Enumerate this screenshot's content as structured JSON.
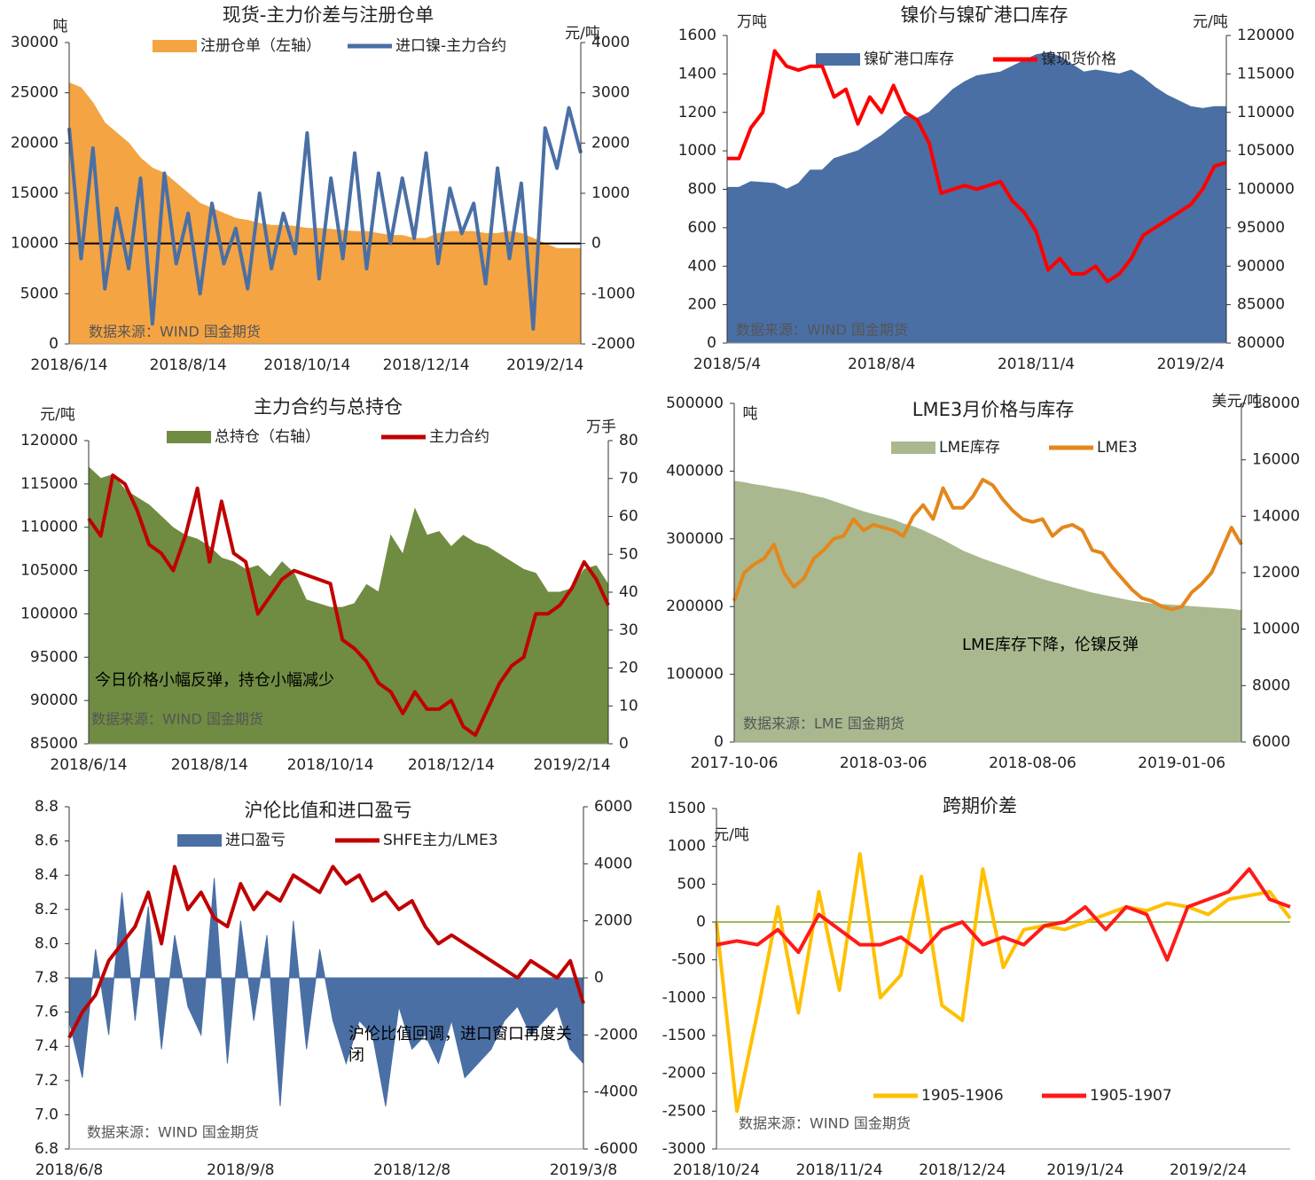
{
  "chart_data": [
    {
      "type": "line",
      "title": "现货-主力价差与注册仓单",
      "y_label": "吨",
      "y2_label": "元/吨",
      "source": "数据来源：WIND 国金期货",
      "categories": [
        "2018/6/14",
        null,
        null,
        null,
        null,
        null,
        null,
        null,
        null,
        null,
        "2018/8/14",
        null,
        null,
        null,
        null,
        null,
        null,
        null,
        null,
        null,
        "2018/10/14",
        null,
        null,
        null,
        null,
        null,
        null,
        null,
        null,
        null,
        "2018/12/14",
        null,
        null,
        null,
        null,
        null,
        null,
        null,
        null,
        null,
        "2019/2/14",
        null,
        null,
        null
      ],
      "ylim": [
        0,
        30000
      ],
      "yticks": [
        0,
        5000,
        10000,
        15000,
        20000,
        25000,
        30000
      ],
      "y2lim": [
        -2000,
        4000
      ],
      "y2ticks": [
        -2000,
        -1000,
        0,
        1000,
        2000,
        3000,
        4000
      ],
      "series": [
        {
          "name": "注册仓单（左轴）",
          "type": "area",
          "color": "#f4a442",
          "values": [
            26000,
            25500,
            24000,
            22000,
            21000,
            20000,
            18500,
            17500,
            17000,
            16000,
            15000,
            14000,
            13500,
            13000,
            12500,
            12300,
            12000,
            11800,
            11800,
            11700,
            11500,
            11500,
            11400,
            11300,
            11200,
            11200,
            11000,
            10800,
            10800,
            10500,
            10500,
            11000,
            11200,
            11200,
            11200,
            11000,
            11000,
            11200,
            11000,
            10500,
            10000,
            9500,
            9500,
            9500
          ]
        },
        {
          "name": "进口镍-主力合约",
          "type": "line",
          "axis": "y2",
          "color": "#4a6fa5",
          "values": [
            2300,
            -300,
            1900,
            -900,
            700,
            -500,
            1300,
            -1600,
            1400,
            -400,
            600,
            -1000,
            800,
            -400,
            300,
            -900,
            1000,
            -500,
            600,
            -200,
            2200,
            -700,
            1300,
            -300,
            1800,
            -500,
            1400,
            0,
            1300,
            100,
            1800,
            -400,
            1100,
            200,
            800,
            -800,
            1500,
            -300,
            1200,
            -1700,
            2300,
            1500,
            2700,
            1800
          ]
        }
      ]
    },
    {
      "type": "line",
      "title": "镍价与镍矿港口库存",
      "y_label": "万吨",
      "y2_label": "元/吨",
      "source": "数据来源：WIND 国金期货",
      "categories": [
        "2018/5/4",
        null,
        null,
        null,
        null,
        null,
        null,
        null,
        null,
        null,
        null,
        null,
        null,
        "2018/8/4",
        null,
        null,
        null,
        null,
        null,
        null,
        null,
        null,
        null,
        null,
        null,
        null,
        "2018/11/4",
        null,
        null,
        null,
        null,
        null,
        null,
        null,
        null,
        null,
        null,
        null,
        null,
        "2019/2/4",
        null,
        null,
        null
      ],
      "ylim": [
        0,
        1600
      ],
      "yticks": [
        0,
        200,
        400,
        600,
        800,
        1000,
        1200,
        1400,
        1600
      ],
      "y2lim": [
        80000,
        120000
      ],
      "y2ticks": [
        80000,
        85000,
        90000,
        95000,
        100000,
        105000,
        110000,
        115000,
        120000
      ],
      "series": [
        {
          "name": "镍矿港口库存",
          "type": "area",
          "color": "#4a6fa5",
          "values": [
            810,
            810,
            840,
            835,
            830,
            800,
            830,
            900,
            900,
            960,
            980,
            1000,
            1040,
            1080,
            1130,
            1180,
            1170,
            1200,
            1260,
            1320,
            1360,
            1390,
            1400,
            1410,
            1440,
            1470,
            1500,
            1510,
            1490,
            1450,
            1410,
            1420,
            1410,
            1400,
            1420,
            1380,
            1330,
            1290,
            1260,
            1230,
            1220,
            1230,
            1230
          ]
        },
        {
          "name": "镍现货价格",
          "type": "line",
          "axis": "y2",
          "color": "#ff0000",
          "values": [
            104000,
            104000,
            108000,
            110000,
            118000,
            116000,
            115500,
            116000,
            116000,
            112000,
            113000,
            108500,
            112000,
            110000,
            113500,
            110000,
            109000,
            106000,
            99500,
            100000,
            100500,
            100000,
            100500,
            101000,
            98500,
            97000,
            94500,
            89500,
            91000,
            89000,
            89000,
            90000,
            88000,
            89000,
            91000,
            94000,
            95000,
            96000,
            97000,
            98000,
            100000,
            103000,
            103500
          ]
        }
      ]
    },
    {
      "type": "line",
      "title": "主力合约与总持仓",
      "y_label": "元/吨",
      "y2_label": "万手",
      "source": "数据来源：WIND 国金期货",
      "annotation": "今日价格小幅反弹，持仓小幅减少",
      "categories": [
        "2018/6/14",
        null,
        null,
        null,
        null,
        null,
        null,
        null,
        null,
        null,
        "2018/8/14",
        null,
        null,
        null,
        null,
        null,
        null,
        null,
        null,
        null,
        "2018/10/14",
        null,
        null,
        null,
        null,
        null,
        null,
        null,
        null,
        null,
        "2018/12/14",
        null,
        null,
        null,
        null,
        null,
        null,
        null,
        null,
        null,
        "2019/2/14",
        null,
        null,
        null
      ],
      "ylim": [
        85000,
        120000
      ],
      "yticks": [
        85000,
        90000,
        95000,
        100000,
        105000,
        110000,
        115000,
        120000
      ],
      "y2lim": [
        0,
        80
      ],
      "y2ticks": [
        0,
        10,
        20,
        30,
        40,
        50,
        60,
        70,
        80
      ],
      "series": [
        {
          "name": "总持仓（右轴）",
          "type": "area",
          "axis": "y2",
          "color": "#6f8c42",
          "values": [
            73,
            70,
            71,
            67,
            65,
            63,
            60,
            57,
            55,
            54,
            52,
            49,
            48,
            46,
            47,
            44,
            48,
            45,
            38,
            37,
            36,
            36,
            37,
            42,
            40,
            55,
            50,
            62,
            55,
            56,
            52,
            55,
            53,
            52,
            50,
            48,
            46,
            45,
            40,
            40,
            41,
            46,
            47,
            42
          ]
        },
        {
          "name": "主力合约",
          "type": "line",
          "color": "#c00000",
          "values": [
            111000,
            109000,
            116000,
            115000,
            112000,
            108000,
            107000,
            105000,
            109000,
            114500,
            106000,
            113000,
            107000,
            106000,
            100000,
            102000,
            104000,
            105000,
            104500,
            104000,
            103500,
            97000,
            96000,
            94500,
            92000,
            91000,
            88500,
            91000,
            89000,
            89000,
            90000,
            87000,
            86000,
            89000,
            92000,
            94000,
            95000,
            100000,
            100000,
            101000,
            103000,
            106000,
            104000,
            101000
          ]
        }
      ]
    },
    {
      "type": "line",
      "title": "LME3月价格与库存",
      "y_label": "吨",
      "y2_label": "美元/吨",
      "source": "数据来源：LME 国金期货",
      "annotation": "LME库存下降，伦镍反弹",
      "categories": [
        "2017-10-06",
        null,
        null,
        null,
        null,
        null,
        null,
        null,
        null,
        null,
        null,
        null,
        null,
        null,
        null,
        "2018-03-06",
        null,
        null,
        null,
        null,
        null,
        null,
        null,
        null,
        null,
        null,
        null,
        null,
        null,
        null,
        "2018-08-06",
        null,
        null,
        null,
        null,
        null,
        null,
        null,
        null,
        null,
        null,
        null,
        null,
        null,
        null,
        "2019-01-06",
        null,
        null,
        null,
        null,
        null,
        null
      ],
      "ylim": [
        0,
        500000
      ],
      "yticks": [
        0,
        100000,
        200000,
        300000,
        400000,
        500000
      ],
      "y2lim": [
        6000,
        18000
      ],
      "y2ticks": [
        6000,
        8000,
        10000,
        12000,
        14000,
        16000,
        18000
      ],
      "series": [
        {
          "name": "LME库存",
          "type": "area",
          "color": "#aab88f",
          "values": [
            385000,
            383000,
            380000,
            378000,
            375000,
            373000,
            370000,
            367000,
            363000,
            360000,
            355000,
            350000,
            345000,
            340000,
            336000,
            332000,
            328000,
            322000,
            318000,
            312000,
            305000,
            298000,
            290000,
            282000,
            276000,
            270000,
            265000,
            260000,
            255000,
            250000,
            245000,
            240000,
            236000,
            232000,
            228000,
            224000,
            220000,
            217000,
            214000,
            211000,
            208000,
            206000,
            204000,
            203000,
            202000,
            201000,
            200000,
            199000,
            198000,
            197000,
            196000,
            194000
          ]
        },
        {
          "name": "LME3",
          "type": "line",
          "axis": "y2",
          "color": "#e3871c",
          "values": [
            11000,
            12000,
            12300,
            12500,
            13000,
            12000,
            11500,
            11800,
            12500,
            12800,
            13200,
            13300,
            13900,
            13500,
            13700,
            13600,
            13500,
            13300,
            14000,
            14400,
            13900,
            15000,
            14300,
            14300,
            14700,
            15300,
            15100,
            14600,
            14200,
            13900,
            13800,
            13900,
            13300,
            13600,
            13700,
            13500,
            12800,
            12700,
            12200,
            11800,
            11400,
            11100,
            11000,
            10800,
            10700,
            10800,
            11300,
            11600,
            12000,
            12800,
            13600,
            13000
          ]
        }
      ]
    },
    {
      "type": "line",
      "title": "沪伦比值和进口盈亏",
      "source": "数据来源：WIND 国金期货",
      "annotation": "沪伦比值回调，进口窗口再度关闭",
      "categories": [
        "2018/6/8",
        null,
        null,
        null,
        null,
        null,
        null,
        null,
        null,
        null,
        null,
        null,
        null,
        "2018/9/8",
        null,
        null,
        null,
        null,
        null,
        null,
        null,
        null,
        null,
        null,
        null,
        null,
        "2018/12/8",
        null,
        null,
        null,
        null,
        null,
        null,
        null,
        null,
        null,
        null,
        null,
        null,
        "2019/3/8"
      ],
      "ylim": [
        6.8,
        8.8
      ],
      "yticks": [
        6.8,
        {
          "value": 7,
          "label": "7.0"
        },
        7.2,
        7.4,
        7.6,
        7.8,
        {
          "value": 8,
          "label": "8.0"
        },
        8.2,
        8.4,
        8.6,
        8.8
      ],
      "y2lim": [
        -6000,
        6000
      ],
      "y2ticks": [
        -6000,
        -4000,
        -2000,
        0,
        2000,
        4000,
        6000
      ],
      "series": [
        {
          "name": "进口盈亏",
          "type": "area",
          "axis": "y2",
          "color": "#4a6fa5",
          "values": [
            -1500,
            -3500,
            1000,
            -2000,
            3000,
            -1500,
            2500,
            -2500,
            1500,
            -1000,
            -2000,
            3500,
            -3000,
            2000,
            -1500,
            1500,
            -4500,
            2000,
            -2500,
            1000,
            -1500,
            -3000,
            -1500,
            -2000,
            -4500,
            -1000,
            -2500,
            -2000,
            -3000,
            -1500,
            -3500,
            -3000,
            -2500,
            -1500,
            -1000,
            -2000,
            -1500,
            -1000,
            -2500,
            -3000
          ]
        },
        {
          "name": "SHFE主力/LME3",
          "type": "line",
          "color": "#c00000",
          "values": [
            7.45,
            7.6,
            7.7,
            7.9,
            8.0,
            8.1,
            8.3,
            8.0,
            8.45,
            8.2,
            8.3,
            8.15,
            8.1,
            8.35,
            8.2,
            8.3,
            8.25,
            8.4,
            8.35,
            8.3,
            8.45,
            8.35,
            8.4,
            8.25,
            8.3,
            8.2,
            8.25,
            8.1,
            8.0,
            8.05,
            8.0,
            7.95,
            7.9,
            7.85,
            7.8,
            7.9,
            7.85,
            7.8,
            7.9,
            7.65
          ]
        }
      ]
    },
    {
      "type": "line",
      "title": "跨期价差",
      "y_label": "元/吨",
      "source": "数据来源：WIND 国金期货",
      "categories": [
        "2018/10/24",
        null,
        null,
        null,
        null,
        null,
        "2018/11/24",
        null,
        null,
        null,
        null,
        null,
        "2018/12/24",
        null,
        null,
        null,
        null,
        null,
        "2019/1/24",
        null,
        null,
        null,
        null,
        null,
        "2019/2/24",
        null,
        null,
        null,
        null
      ],
      "ylim": [
        -3000,
        1500
      ],
      "yticks": [
        -3000,
        -2500,
        -2000,
        -1500,
        -1000,
        -500,
        0,
        500,
        1000,
        1500
      ],
      "series": [
        {
          "name": "1905-1906",
          "type": "line",
          "color": "#ffc000",
          "values": [
            0,
            -2500,
            -1200,
            200,
            -1200,
            400,
            -900,
            900,
            -1000,
            -700,
            600,
            -1100,
            -1300,
            700,
            -600,
            -100,
            -50,
            -100,
            0,
            100,
            200,
            150,
            250,
            200,
            100,
            300,
            350,
            400,
            50
          ]
        },
        {
          "name": "1905-1907",
          "type": "line",
          "color": "#ff1a1a",
          "values": [
            -300,
            -250,
            -300,
            -100,
            -400,
            100,
            -100,
            -300,
            -300,
            -200,
            -400,
            -100,
            0,
            -300,
            -200,
            -300,
            -50,
            0,
            200,
            -100,
            200,
            100,
            -500,
            200,
            300,
            400,
            700,
            300,
            200
          ]
        }
      ]
    }
  ]
}
